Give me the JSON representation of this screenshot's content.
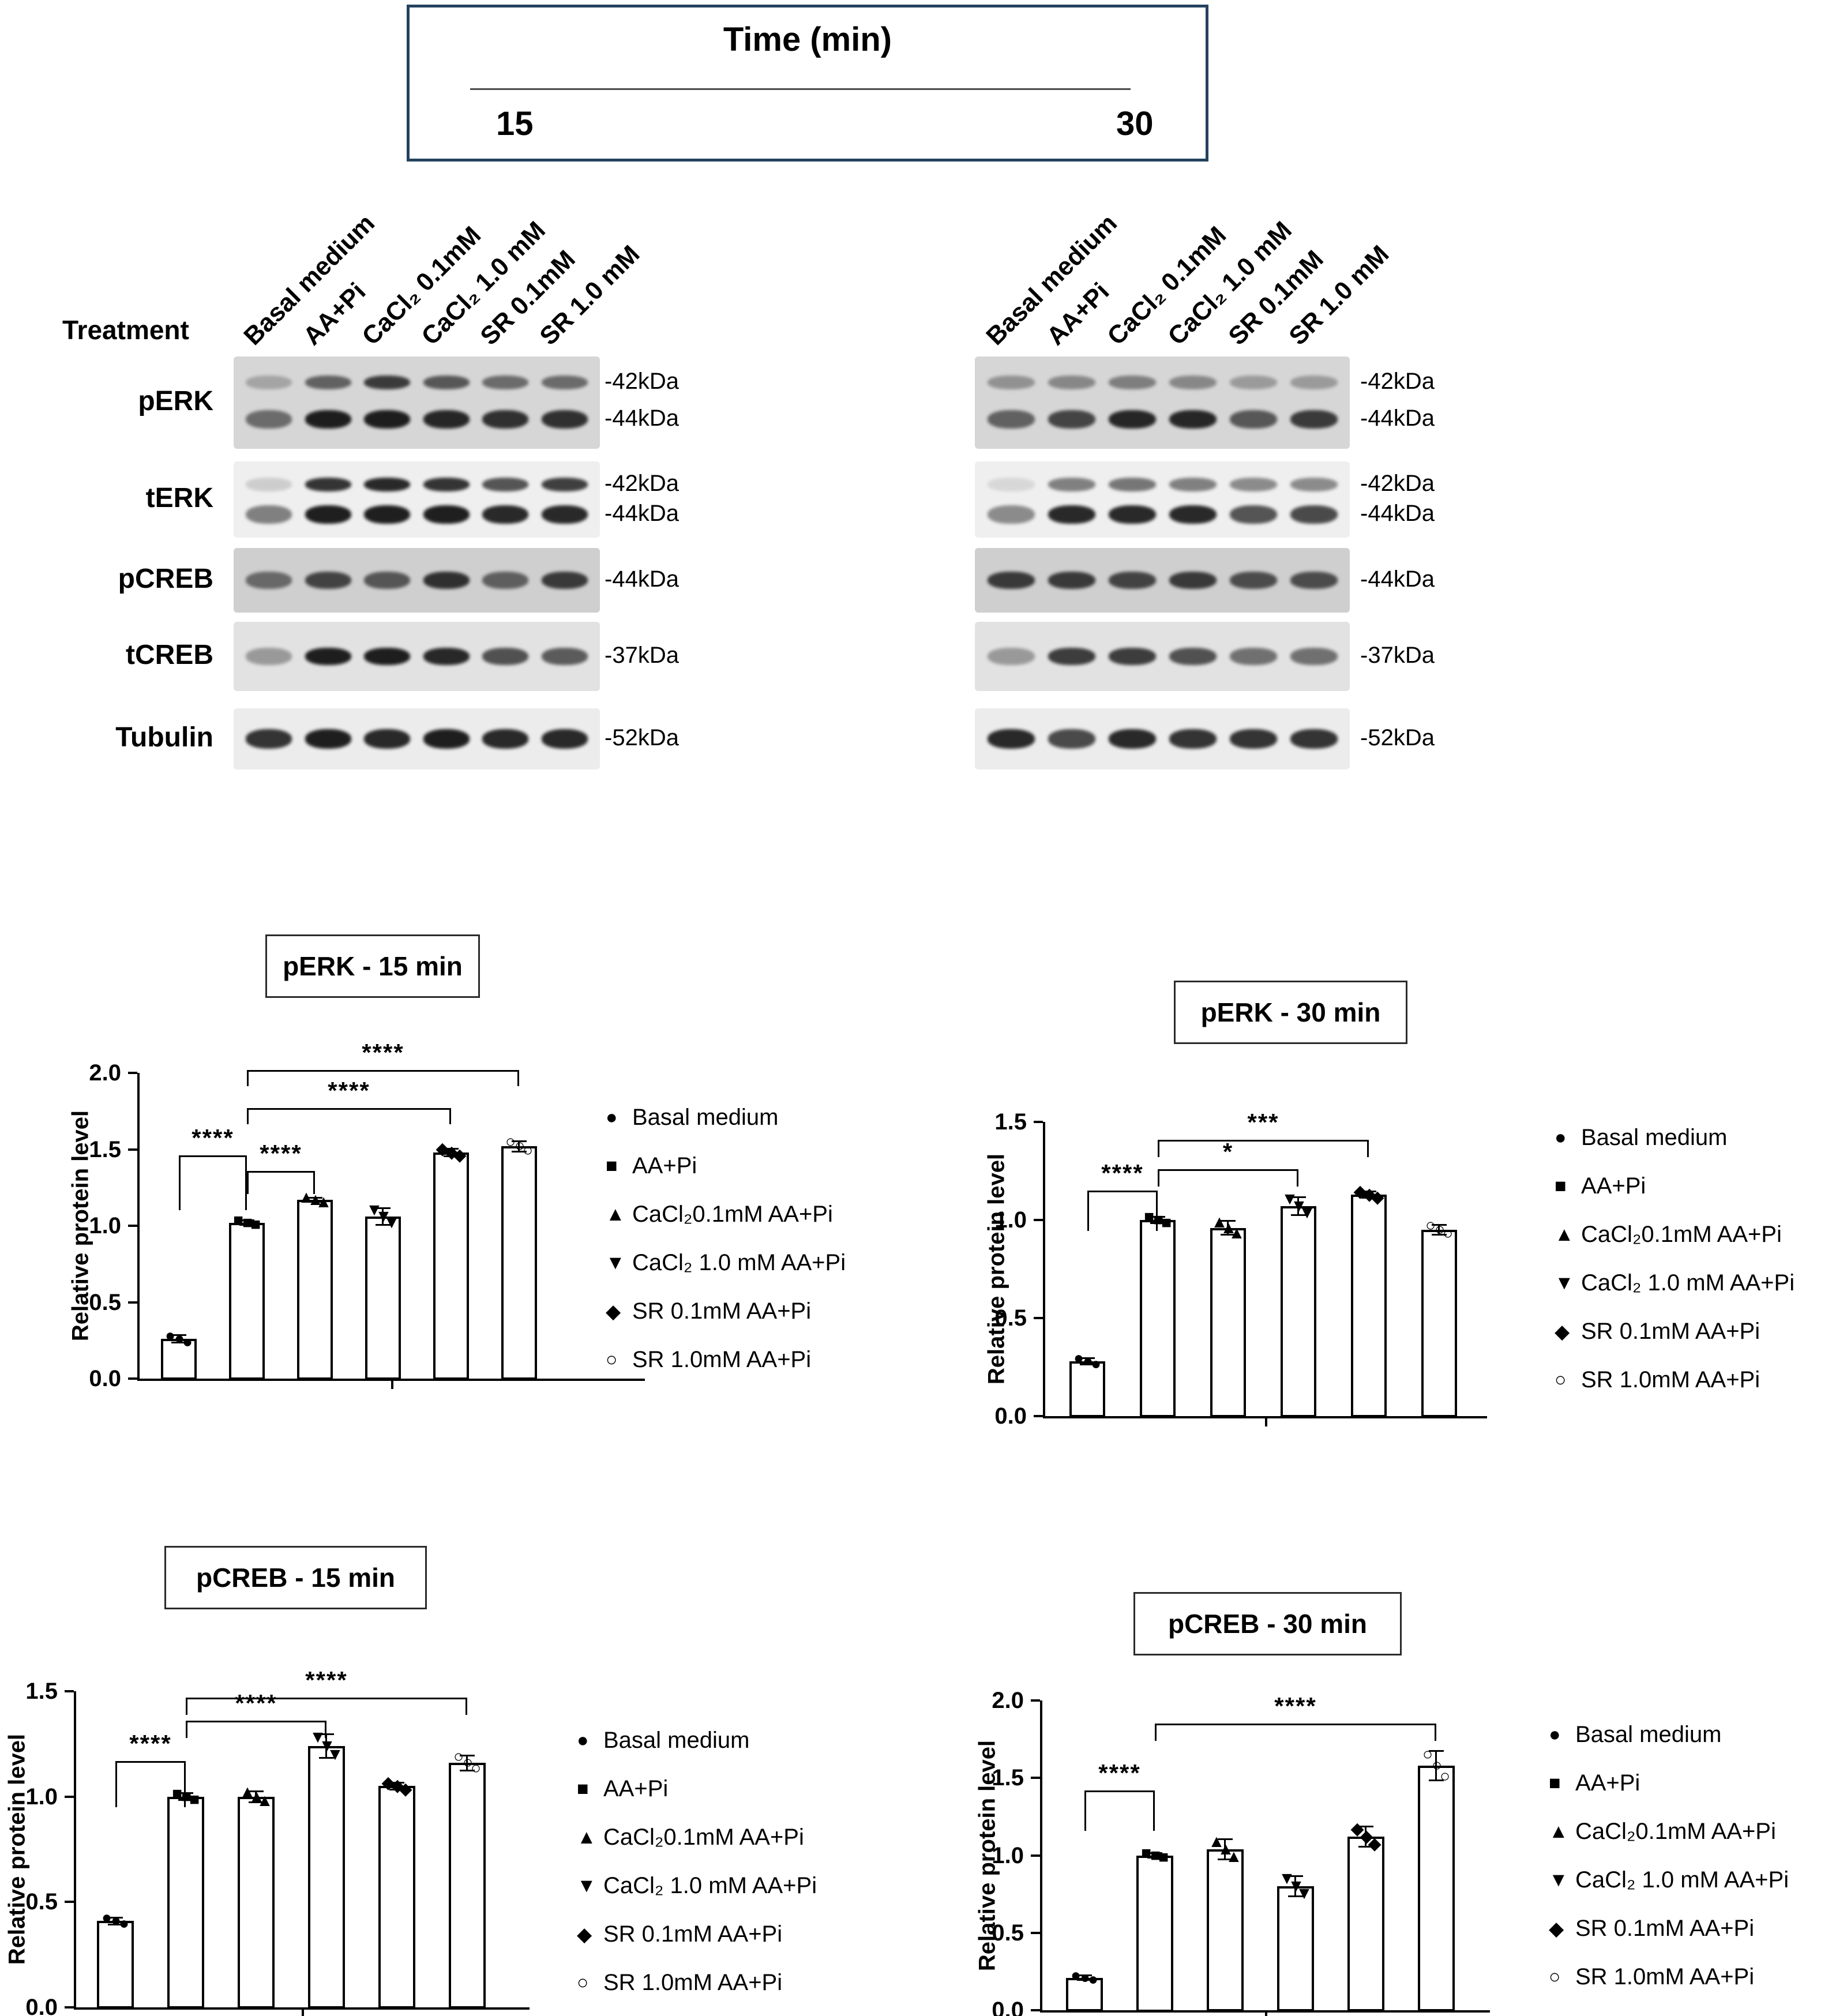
{
  "time_header": {
    "title": "Time (min)",
    "t15": "15",
    "t30": "30"
  },
  "blots": {
    "treatment_label": "Treatment",
    "treatments": [
      "Basal medium",
      "AA+Pi",
      "CaCl₂ 0.1mM",
      "CaCl₂ 1.0 mM",
      "SR 0.1mM",
      "SR 1.0 mM"
    ],
    "rows": [
      {
        "name": "pERK",
        "mw": [
          "-42kDa",
          "-44kDa"
        ]
      },
      {
        "name": "tERK",
        "mw": [
          "-42kDa",
          "-44kDa"
        ]
      },
      {
        "name": "pCREB",
        "mw": [
          "-44kDa"
        ]
      },
      {
        "name": "tCREB",
        "mw": [
          "-37kDa"
        ]
      },
      {
        "name": "Tubulin",
        "mw": [
          "-52kDa"
        ]
      }
    ],
    "panels": [
      {
        "id": "15",
        "bands": {
          "pERK": [
            [
              0.25,
              0.6,
              0.8,
              0.65,
              0.55,
              0.55
            ],
            [
              0.55,
              0.95,
              0.95,
              0.9,
              0.85,
              0.85
            ]
          ],
          "tERK": [
            [
              0.15,
              0.85,
              0.9,
              0.85,
              0.7,
              0.8
            ],
            [
              0.5,
              0.95,
              0.95,
              0.95,
              0.9,
              0.9
            ]
          ],
          "pCREB": [
            [
              0.55,
              0.75,
              0.65,
              0.85,
              0.6,
              0.8
            ]
          ],
          "tCREB": [
            [
              0.35,
              0.95,
              0.95,
              0.9,
              0.7,
              0.65
            ]
          ],
          "Tubulin": [
            [
              0.85,
              0.95,
              0.9,
              0.95,
              0.9,
              0.9
            ]
          ]
        }
      },
      {
        "id": "30",
        "bands": {
          "pERK": [
            [
              0.35,
              0.4,
              0.45,
              0.4,
              0.3,
              0.3
            ],
            [
              0.6,
              0.75,
              0.9,
              0.9,
              0.65,
              0.8
            ]
          ],
          "tERK": [
            [
              0.1,
              0.5,
              0.55,
              0.5,
              0.45,
              0.45
            ],
            [
              0.45,
              0.9,
              0.9,
              0.9,
              0.7,
              0.75
            ]
          ],
          "pCREB": [
            [
              0.8,
              0.8,
              0.75,
              0.8,
              0.7,
              0.7
            ]
          ],
          "tCREB": [
            [
              0.35,
              0.8,
              0.8,
              0.7,
              0.55,
              0.55
            ]
          ],
          "Tubulin": [
            [
              0.9,
              0.75,
              0.9,
              0.85,
              0.85,
              0.85
            ]
          ]
        }
      }
    ]
  },
  "markers": [
    "●",
    "■",
    "▲",
    "▼",
    "◆",
    "○"
  ],
  "legend_entries": [
    "Basal medium",
    "AA+Pi",
    "CaCl₂0.1mM AA+Pi",
    "CaCl₂ 1.0 mM AA+Pi",
    "SR 0.1mM AA+Pi",
    "SR 1.0mM AA+Pi"
  ],
  "chart_data": [
    {
      "id": "pERK-15",
      "type": "bar",
      "title": "pERK - 15 min",
      "ylabel": "Relative protein level",
      "ylim": [
        0,
        2.0
      ],
      "yticks": [
        "0.0",
        "0.5",
        "1.0",
        "1.5",
        "2.0"
      ],
      "categories": [
        "Basal medium",
        "AA+Pi",
        "CaCl₂0.1mM AA+Pi",
        "CaCl₂ 1.0 mM AA+Pi",
        "SR 0.1mM AA+Pi",
        "SR 1.0mM AA+Pi"
      ],
      "values": [
        0.26,
        1.02,
        1.17,
        1.06,
        1.48,
        1.52
      ],
      "errors": [
        0.03,
        0.02,
        0.02,
        0.06,
        0.03,
        0.04
      ],
      "significance": [
        {
          "from": 0,
          "to": 1,
          "label": "****",
          "y": 1.46,
          "drop": 95
        },
        {
          "from": 1,
          "to": 2,
          "label": "****",
          "y": 1.36,
          "drop": 40
        },
        {
          "from": 1,
          "to": 4,
          "label": "****",
          "y": 1.77,
          "drop": 28
        },
        {
          "from": 1,
          "to": 5,
          "label": "****",
          "y": 2.02,
          "drop": 28
        }
      ],
      "legend_position": "right"
    },
    {
      "id": "pERK-30",
      "type": "bar",
      "title": "pERK - 30 min",
      "ylabel": "Relative protein level",
      "ylim": [
        0,
        1.5
      ],
      "yticks": [
        "0.0",
        "0.5",
        "1.0",
        "1.5"
      ],
      "categories": [
        "Basal medium",
        "AA+Pi",
        "CaCl₂0.1mM AA+Pi",
        "CaCl₂ 1.0 mM AA+Pi",
        "SR 0.1mM AA+Pi",
        "SR 1.0mM AA+Pi"
      ],
      "values": [
        0.28,
        1.0,
        0.96,
        1.07,
        1.13,
        0.95
      ],
      "errors": [
        0.02,
        0.02,
        0.04,
        0.05,
        0.02,
        0.03
      ],
      "significance": [
        {
          "from": 0,
          "to": 1,
          "label": "****",
          "y": 1.15,
          "drop": 70
        },
        {
          "from": 1,
          "to": 3,
          "label": "*",
          "y": 1.26,
          "drop": 30
        },
        {
          "from": 1,
          "to": 4,
          "label": "***",
          "y": 1.41,
          "drop": 30
        }
      ],
      "legend_position": "right"
    },
    {
      "id": "pCREB-15",
      "type": "bar",
      "title": "pCREB  - 15 min",
      "ylabel": "Relative protein level",
      "ylim": [
        0,
        1.5
      ],
      "yticks": [
        "0.0",
        "0.5",
        "1.0",
        "1.5"
      ],
      "categories": [
        "Basal medium",
        "AA+Pi",
        "CaCl₂0.1mM AA+Pi",
        "CaCl₂ 1.0 mM AA+Pi",
        "SR 0.1mM AA+Pi",
        "SR 1.0mM AA+Pi"
      ],
      "values": [
        0.41,
        1.0,
        1.0,
        1.24,
        1.05,
        1.16
      ],
      "errors": [
        0.02,
        0.02,
        0.03,
        0.06,
        0.02,
        0.04
      ],
      "significance": [
        {
          "from": 0,
          "to": 1,
          "label": "****",
          "y": 1.17,
          "drop": 80
        },
        {
          "from": 1,
          "to": 3,
          "label": "****",
          "y": 1.36,
          "drop": 30
        },
        {
          "from": 1,
          "to": 5,
          "label": "****",
          "y": 1.47,
          "drop": 30
        }
      ],
      "legend_position": "right"
    },
    {
      "id": "pCREB-30",
      "type": "bar",
      "title": "pCREB  - 30 min",
      "ylabel": "Relative protein level",
      "ylim": [
        0,
        2.0
      ],
      "yticks": [
        "0.0",
        "0.5",
        "1.0",
        "1.5",
        "2.0"
      ],
      "categories": [
        "Basal medium",
        "AA+Pi",
        "CaCl₂0.1mM AA+Pi",
        "CaCl₂ 1.0 mM AA+Pi",
        "SR 0.1mM AA+Pi",
        "SR 1.0mM AA+Pi"
      ],
      "values": [
        0.21,
        1.0,
        1.04,
        0.8,
        1.12,
        1.58
      ],
      "errors": [
        0.02,
        0.02,
        0.07,
        0.07,
        0.07,
        0.1
      ],
      "significance": [
        {
          "from": 0,
          "to": 1,
          "label": "****",
          "y": 1.42,
          "drop": 70
        },
        {
          "from": 1,
          "to": 5,
          "label": "****",
          "y": 1.85,
          "drop": 30
        }
      ],
      "legend_position": "right"
    }
  ]
}
